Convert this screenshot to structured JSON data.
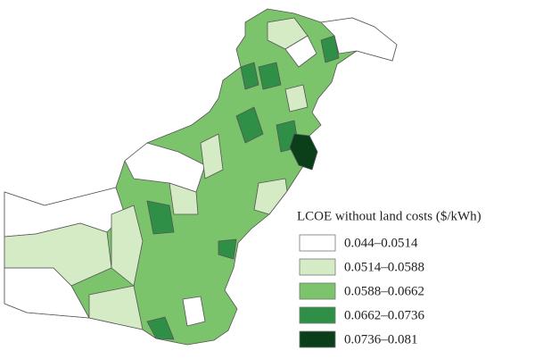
{
  "legend": {
    "title": "LCOE without land costs ($/kWh)",
    "classes": [
      {
        "label": "0.044–0.0514",
        "color": "#ffffff"
      },
      {
        "label": "0.0514–0.0588",
        "color": "#d4ebc6"
      },
      {
        "label": "0.0588–0.0662",
        "color": "#7cc46c"
      },
      {
        "label": "0.0662–0.0736",
        "color": "#2f8f46"
      },
      {
        "label": "0.0736–0.081",
        "color": "#0b3f1a"
      }
    ]
  }
}
